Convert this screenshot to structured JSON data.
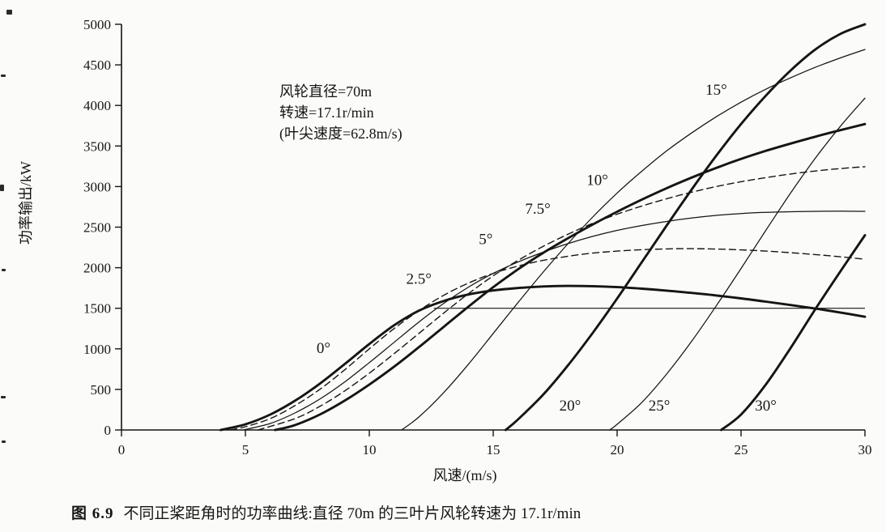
{
  "figure": {
    "caption_label": "图 6.9",
    "caption_text": "不同正桨距角时的功率曲线:直径 70m 的三叶片风轮转速为 17.1r/min"
  },
  "annotation": {
    "line1": "风轮直径=70m",
    "line2": "转速=17.1r/min",
    "line3": "(叶尖速度=62.8m/s)"
  },
  "chart_data": {
    "type": "line",
    "title": "",
    "xlabel": "风速/(m/s)",
    "ylabel": "功率输出/kW",
    "xlim": [
      0,
      30
    ],
    "ylim": [
      0,
      5000
    ],
    "xticks": [
      0,
      5,
      10,
      15,
      20,
      25,
      30
    ],
    "yticks": [
      0,
      500,
      1000,
      1500,
      2000,
      2500,
      3000,
      3500,
      4000,
      4500,
      5000
    ],
    "grid": false,
    "legend": "labels-on-curves",
    "rated_power_line": {
      "power_kw": 1500,
      "x_start": 12.6,
      "x_end": 30,
      "style": "thin"
    },
    "series": [
      {
        "name": "0°",
        "pitch_deg": 0,
        "style": "thick",
        "label": {
          "text": "0°",
          "x": 8.15,
          "y": 950
        },
        "points": [
          [
            4,
            0
          ],
          [
            5,
            70
          ],
          [
            6,
            190
          ],
          [
            7,
            360
          ],
          [
            8,
            570
          ],
          [
            9,
            810
          ],
          [
            10,
            1060
          ],
          [
            11,
            1290
          ],
          [
            12,
            1470
          ],
          [
            13,
            1590
          ],
          [
            14,
            1670
          ],
          [
            15,
            1720
          ],
          [
            16,
            1750
          ],
          [
            17,
            1768
          ],
          [
            18,
            1775
          ],
          [
            19,
            1772
          ],
          [
            20,
            1760
          ],
          [
            21,
            1742
          ],
          [
            22,
            1718
          ],
          [
            23,
            1690
          ],
          [
            24,
            1658
          ],
          [
            25,
            1622
          ],
          [
            26,
            1582
          ],
          [
            27,
            1540
          ],
          [
            28,
            1496
          ],
          [
            29,
            1448
          ],
          [
            30,
            1395
          ]
        ]
      },
      {
        "name": "2.5°",
        "pitch_deg": 2.5,
        "style": "dashed",
        "label": {
          "text": "2.5°",
          "x": 12.0,
          "y": 1800
        },
        "points": [
          [
            4.4,
            0
          ],
          [
            5,
            40
          ],
          [
            6,
            140
          ],
          [
            7,
            300
          ],
          [
            8,
            500
          ],
          [
            9,
            740
          ],
          [
            10,
            1000
          ],
          [
            11,
            1250
          ],
          [
            12,
            1470
          ],
          [
            13,
            1660
          ],
          [
            14,
            1810
          ],
          [
            15,
            1930
          ],
          [
            16,
            2020
          ],
          [
            17,
            2090
          ],
          [
            18,
            2140
          ],
          [
            19,
            2180
          ],
          [
            20,
            2205
          ],
          [
            21,
            2222
          ],
          [
            22,
            2232
          ],
          [
            23,
            2235
          ],
          [
            24,
            2230
          ],
          [
            25,
            2220
          ],
          [
            26,
            2205
          ],
          [
            27,
            2185
          ],
          [
            28,
            2162
          ],
          [
            29,
            2135
          ],
          [
            30,
            2105
          ]
        ]
      },
      {
        "name": "5°",
        "pitch_deg": 5,
        "style": "thin",
        "label": {
          "text": "5°",
          "x": 14.7,
          "y": 2290
        },
        "points": [
          [
            4.9,
            0
          ],
          [
            6,
            80
          ],
          [
            7,
            210
          ],
          [
            8,
            380
          ],
          [
            9,
            590
          ],
          [
            10,
            830
          ],
          [
            11,
            1080
          ],
          [
            12,
            1330
          ],
          [
            13,
            1560
          ],
          [
            14,
            1760
          ],
          [
            15,
            1930
          ],
          [
            16,
            2070
          ],
          [
            17,
            2190
          ],
          [
            18,
            2295
          ],
          [
            19,
            2385
          ],
          [
            20,
            2460
          ],
          [
            21,
            2520
          ],
          [
            22,
            2570
          ],
          [
            23,
            2612
          ],
          [
            24,
            2645
          ],
          [
            25,
            2668
          ],
          [
            26,
            2682
          ],
          [
            27,
            2690
          ],
          [
            28,
            2695
          ],
          [
            29,
            2697
          ],
          [
            30,
            2695
          ]
        ]
      },
      {
        "name": "7.5°",
        "pitch_deg": 7.5,
        "style": "dashed",
        "label": {
          "text": "7.5°",
          "x": 16.8,
          "y": 2665
        },
        "points": [
          [
            5.5,
            0
          ],
          [
            7,
            140
          ],
          [
            8,
            290
          ],
          [
            9,
            480
          ],
          [
            10,
            700
          ],
          [
            11,
            940
          ],
          [
            12,
            1190
          ],
          [
            13,
            1440
          ],
          [
            14,
            1680
          ],
          [
            15,
            1900
          ],
          [
            16,
            2090
          ],
          [
            17,
            2260
          ],
          [
            18,
            2410
          ],
          [
            19,
            2545
          ],
          [
            20,
            2660
          ],
          [
            21,
            2760
          ],
          [
            22,
            2850
          ],
          [
            23,
            2930
          ],
          [
            24,
            3000
          ],
          [
            25,
            3060
          ],
          [
            26,
            3110
          ],
          [
            27,
            3155
          ],
          [
            28,
            3192
          ],
          [
            29,
            3222
          ],
          [
            30,
            3245
          ]
        ]
      },
      {
        "name": "10°",
        "pitch_deg": 10,
        "style": "thick",
        "label": {
          "text": "10°",
          "x": 19.2,
          "y": 3020
        },
        "points": [
          [
            6.2,
            0
          ],
          [
            7,
            60
          ],
          [
            8,
            190
          ],
          [
            9,
            360
          ],
          [
            10,
            560
          ],
          [
            11,
            780
          ],
          [
            12,
            1020
          ],
          [
            13,
            1270
          ],
          [
            14,
            1520
          ],
          [
            15,
            1760
          ],
          [
            16,
            1980
          ],
          [
            17,
            2180
          ],
          [
            18,
            2360
          ],
          [
            19,
            2530
          ],
          [
            20,
            2690
          ],
          [
            21,
            2840
          ],
          [
            22,
            2980
          ],
          [
            23,
            3110
          ],
          [
            24,
            3230
          ],
          [
            25,
            3340
          ],
          [
            26,
            3440
          ],
          [
            27,
            3530
          ],
          [
            28,
            3615
          ],
          [
            29,
            3695
          ],
          [
            30,
            3770
          ]
        ]
      },
      {
        "name": "15°",
        "pitch_deg": 15,
        "style": "thin",
        "label": {
          "text": "15°",
          "x": 24.0,
          "y": 4130
        },
        "points": [
          [
            11.3,
            0
          ],
          [
            12,
            160
          ],
          [
            13,
            460
          ],
          [
            14,
            810
          ],
          [
            15,
            1190
          ],
          [
            16,
            1570
          ],
          [
            17,
            1940
          ],
          [
            18,
            2290
          ],
          [
            19,
            2620
          ],
          [
            20,
            2920
          ],
          [
            21,
            3190
          ],
          [
            22,
            3440
          ],
          [
            23,
            3660
          ],
          [
            24,
            3860
          ],
          [
            25,
            4040
          ],
          [
            26,
            4200
          ],
          [
            27,
            4340
          ],
          [
            28,
            4470
          ],
          [
            29,
            4585
          ],
          [
            30,
            4690
          ]
        ]
      },
      {
        "name": "20°",
        "pitch_deg": 20,
        "style": "thick",
        "label": {
          "text": "20°",
          "x": 18.1,
          "y": 240
        },
        "points": [
          [
            15.5,
            0
          ],
          [
            16,
            130
          ],
          [
            17,
            430
          ],
          [
            18,
            790
          ],
          [
            19,
            1190
          ],
          [
            20,
            1620
          ],
          [
            21,
            2070
          ],
          [
            22,
            2520
          ],
          [
            23,
            2960
          ],
          [
            24,
            3380
          ],
          [
            25,
            3770
          ],
          [
            26,
            4120
          ],
          [
            27,
            4430
          ],
          [
            28,
            4690
          ],
          [
            29,
            4880
          ],
          [
            30,
            5000
          ]
        ]
      },
      {
        "name": "25°",
        "pitch_deg": 25,
        "style": "thin",
        "label": {
          "text": "25°",
          "x": 21.7,
          "y": 240
        },
        "points": [
          [
            19.7,
            0
          ],
          [
            20,
            70
          ],
          [
            21,
            340
          ],
          [
            22,
            690
          ],
          [
            23,
            1090
          ],
          [
            24,
            1530
          ],
          [
            25,
            1990
          ],
          [
            26,
            2460
          ],
          [
            27,
            2920
          ],
          [
            28,
            3350
          ],
          [
            29,
            3740
          ],
          [
            30,
            4090
          ]
        ]
      },
      {
        "name": "30°",
        "pitch_deg": 30,
        "style": "thick",
        "label": {
          "text": "30°",
          "x": 26.0,
          "y": 240
        },
        "points": [
          [
            24.2,
            0
          ],
          [
            25,
            190
          ],
          [
            26,
            560
          ],
          [
            27,
            1010
          ],
          [
            28,
            1490
          ],
          [
            29,
            1950
          ],
          [
            30,
            2400
          ]
        ]
      }
    ]
  }
}
